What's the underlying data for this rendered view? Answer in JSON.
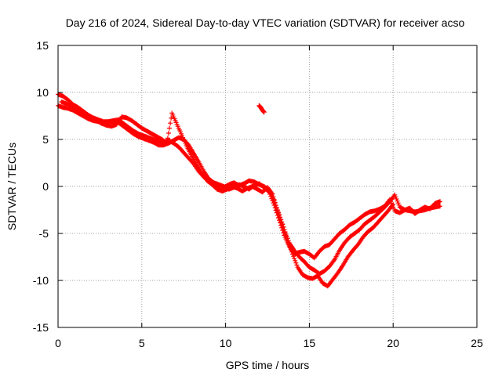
{
  "chart_data": {
    "type": "scatter",
    "title": "Day 216 of 2024, Sidereal Day-to-day VTEC variation (SDTVAR) for receiver acso",
    "xlabel": "GPS time / hours",
    "ylabel": "SDTVAR / TECUs",
    "xlim": [
      0,
      25
    ],
    "ylim": [
      -15,
      15
    ],
    "xticks": [
      "0",
      "5",
      "10",
      "15",
      "20",
      "25"
    ],
    "yticks": [
      "15",
      "10",
      "5",
      "0",
      "-5",
      "-10",
      "-15"
    ],
    "grid": true,
    "marker": "+",
    "color": "#ff0000",
    "series": [
      {
        "name": "trace-a",
        "x": [
          0.0,
          0.3,
          0.6,
          0.9,
          1.2,
          1.5,
          1.8,
          2.1,
          2.4,
          2.7,
          3.0,
          3.3,
          3.6,
          3.9,
          4.2,
          4.5,
          4.8,
          5.1,
          5.4,
          5.7,
          6.0,
          6.3,
          6.6,
          6.9,
          7.2,
          7.5,
          7.8,
          8.1,
          8.4,
          8.7,
          9.0,
          9.3,
          9.6,
          9.9,
          10.2,
          10.5,
          10.8,
          11.1,
          11.4,
          11.7,
          12.0,
          12.3,
          12.6,
          12.9,
          13.2,
          13.5,
          13.8,
          14.1,
          14.4,
          14.7,
          15.0,
          15.3,
          15.6,
          15.9,
          16.2,
          16.5,
          16.8,
          17.1,
          17.4,
          17.7,
          18.0,
          18.3,
          18.6,
          18.9,
          19.2,
          19.5,
          19.8,
          20.1,
          20.4,
          20.7,
          21.0,
          21.3,
          21.6,
          21.9,
          22.2,
          22.5,
          22.8
        ],
        "y": [
          9.8,
          9.6,
          9.2,
          8.7,
          8.4,
          8.0,
          7.6,
          7.3,
          7.1,
          6.9,
          6.9,
          7.0,
          7.1,
          6.7,
          6.3,
          5.9,
          5.6,
          5.4,
          5.2,
          5.0,
          4.8,
          4.7,
          4.9,
          4.6,
          4.2,
          3.6,
          3.0,
          2.4,
          1.6,
          1.0,
          0.6,
          0.3,
          0.0,
          -0.1,
          0.2,
          0.4,
          0.1,
          0.3,
          0.6,
          0.5,
          0.2,
          0.0,
          -0.4,
          -1.5,
          -3.0,
          -4.6,
          -6.0,
          -6.8,
          -7.5,
          -8.0,
          -8.6,
          -8.9,
          -9.3,
          -9.0,
          -8.5,
          -7.8,
          -6.8,
          -6.0,
          -5.4,
          -5.0,
          -4.6,
          -4.0,
          -3.6,
          -3.2,
          -2.7,
          -2.2,
          -1.6,
          -0.9,
          -2.2,
          -2.5,
          -2.6,
          -2.7,
          -2.6,
          -2.5,
          -2.3,
          -2.2,
          -2.1
        ]
      },
      {
        "name": "trace-b",
        "x": [
          0.2,
          0.5,
          0.8,
          1.1,
          1.4,
          1.7,
          2.0,
          2.3,
          2.6,
          2.9,
          3.2,
          3.5,
          3.8,
          4.1,
          4.4,
          4.7,
          5.0,
          5.3,
          5.6,
          5.9,
          6.2,
          6.5,
          6.8,
          7.1,
          7.4,
          7.7,
          8.0,
          8.3,
          8.6,
          8.9,
          9.2,
          9.5,
          9.8,
          10.1,
          10.4,
          10.7,
          11.0,
          11.3,
          11.6,
          11.9,
          12.2,
          12.5,
          12.8,
          13.1,
          13.4,
          13.7,
          14.0,
          14.3,
          14.6,
          14.9,
          15.2,
          15.5,
          15.8,
          16.1,
          16.4,
          16.7,
          17.0,
          17.3,
          17.6,
          17.9,
          18.2,
          18.5,
          18.8,
          19.1,
          19.4,
          19.7,
          20.0
        ],
        "y": [
          9.0,
          8.8,
          8.5,
          8.2,
          7.9,
          7.6,
          7.3,
          7.0,
          6.7,
          6.5,
          6.4,
          6.6,
          7.4,
          7.3,
          7.0,
          6.6,
          6.2,
          5.9,
          5.6,
          5.3,
          5.0,
          4.6,
          7.8,
          6.6,
          5.4,
          4.2,
          3.2,
          2.2,
          1.3,
          0.6,
          0.2,
          -0.3,
          -0.5,
          -0.3,
          0.0,
          -0.2,
          -0.5,
          -0.2,
          0.0,
          -0.3,
          -0.6,
          -0.1,
          -0.8,
          -2.6,
          -4.0,
          -5.8,
          -7.2,
          -8.6,
          -9.4,
          -9.7,
          -9.8,
          -9.5,
          -10.3,
          -10.6,
          -9.9,
          -9.2,
          -8.4,
          -7.5,
          -6.8,
          -6.2,
          -5.4,
          -4.8,
          -4.4,
          -3.8,
          -3.2,
          -2.6,
          -1.9
        ]
      },
      {
        "name": "trace-c",
        "x": [
          0.0,
          0.3,
          0.6,
          0.9,
          1.2,
          1.5,
          1.8,
          2.1,
          2.4,
          2.7,
          3.0,
          3.3,
          3.6,
          3.9,
          4.2,
          4.5,
          4.8,
          5.1,
          5.4,
          5.7,
          6.0,
          6.3,
          6.6,
          6.9,
          7.2,
          7.5,
          7.8,
          8.1,
          8.4,
          8.7,
          9.0,
          9.3,
          9.6,
          9.9,
          10.2,
          10.5,
          10.8,
          11.1,
          11.4,
          11.7,
          12.0,
          12.3,
          12.6,
          12.9,
          13.2,
          13.5,
          13.8,
          14.1,
          14.4,
          14.7,
          15.0,
          15.3,
          15.6,
          15.9,
          16.2,
          16.5,
          16.8,
          17.1,
          17.4,
          17.7,
          18.0,
          18.3,
          18.6,
          18.9,
          19.2,
          19.5,
          19.8,
          20.1,
          20.4,
          20.7,
          21.0,
          21.3,
          21.6,
          21.9,
          22.2,
          22.5,
          22.8
        ],
        "y": [
          8.6,
          8.4,
          8.3,
          8.1,
          7.8,
          7.5,
          7.2,
          7.0,
          6.9,
          6.8,
          6.8,
          6.9,
          6.8,
          6.4,
          6.0,
          5.6,
          5.3,
          5.1,
          4.9,
          4.7,
          4.4,
          4.4,
          4.6,
          4.9,
          5.2,
          5.0,
          4.4,
          3.5,
          2.6,
          1.6,
          0.8,
          0.4,
          0.2,
          0.0,
          -0.3,
          -0.1,
          0.2,
          0.0,
          -0.3,
          0.1,
          0.3,
          -0.1,
          -0.6,
          -2.0,
          -3.6,
          -5.2,
          -6.4,
          -7.2,
          -7.0,
          -6.9,
          -7.2,
          -7.6,
          -6.9,
          -6.4,
          -6.2,
          -5.6,
          -5.0,
          -4.6,
          -4.1,
          -3.8,
          -3.4,
          -3.0,
          -2.7,
          -2.6,
          -2.4,
          -2.1,
          -1.4,
          -2.6,
          -2.8,
          -2.5,
          -2.3,
          -2.9,
          -2.5,
          -2.2,
          -2.4,
          -1.8,
          -1.6
        ]
      },
      {
        "name": "isolated",
        "x": [
          12.0,
          12.1,
          12.2,
          12.3
        ],
        "y": [
          8.6,
          8.4,
          8.1,
          7.9
        ]
      }
    ]
  }
}
